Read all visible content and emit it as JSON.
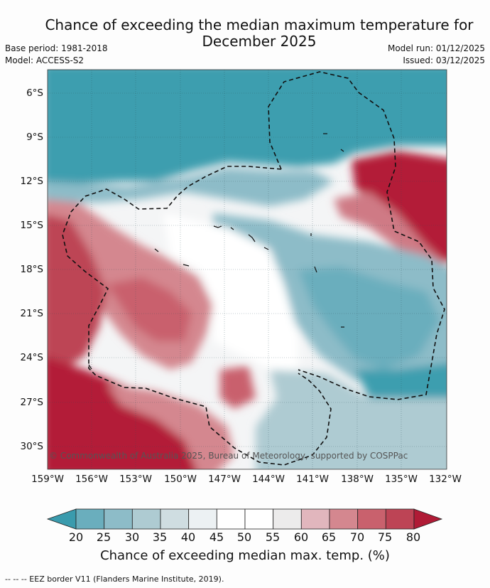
{
  "title": "Chance of exceeding the median maximum temperature for December 2025",
  "meta": {
    "base_period": "Base period: 1981-2018",
    "model": "Model: ACCESS-S2",
    "model_run": "Model run: 01/12/2025",
    "issued": "Issued: 03/12/2025"
  },
  "map": {
    "lat_labels": [
      "6°S",
      "9°S",
      "12°S",
      "15°S",
      "18°S",
      "21°S",
      "24°S",
      "27°S",
      "30°S"
    ],
    "lon_labels": [
      "159°W",
      "156°W",
      "153°W",
      "150°W",
      "147°W",
      "144°W",
      "141°W",
      "138°W",
      "135°W",
      "132°W"
    ],
    "copyright": "© Commonwealth of Australia 2025, Bureau of Meteorology, supported by COSPPac"
  },
  "colorbar": {
    "ticks": [
      "20",
      "25",
      "30",
      "35",
      "40",
      "45",
      "50",
      "55",
      "60",
      "65",
      "70",
      "75",
      "80"
    ],
    "colors": [
      "#3a9bad",
      "#6aaebd",
      "#8dbcc8",
      "#aecbd2",
      "#cfdde1",
      "#ecf1f3",
      "#ffffff",
      "#ffffff",
      "#ecebeb",
      "#e1b6bd",
      "#d4878f",
      "#c9616d",
      "#bd4455",
      "#b01b36"
    ],
    "title": "Chance of exceeding median max. temp. (%)"
  },
  "footnote": "--  --  -- EEZ border V11 (Flanders Marine Institute, 2019)."
}
